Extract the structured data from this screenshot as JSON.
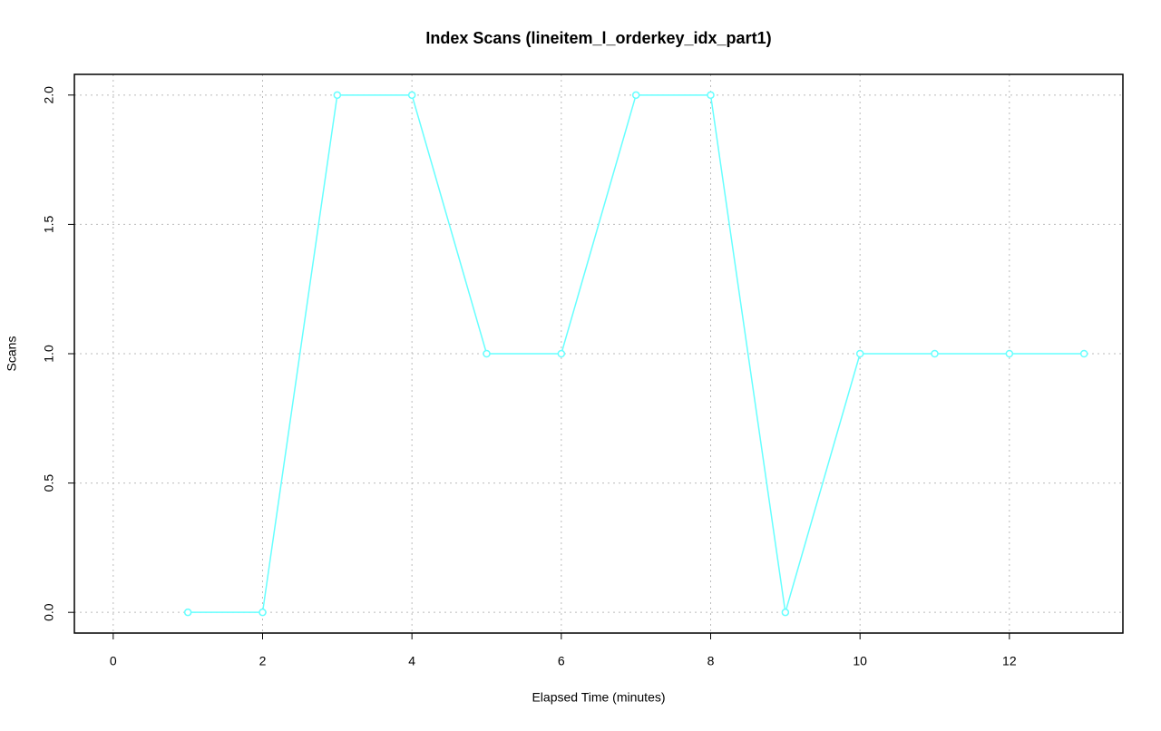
{
  "chart_data": {
    "type": "line",
    "title": "Index Scans (lineitem_l_orderkey_idx_part1)",
    "x_label": "Elapsed Time (minutes)",
    "y_label": "Scans",
    "x": [
      1,
      2,
      3,
      4,
      5,
      6,
      7,
      8,
      9,
      10,
      11,
      12,
      13
    ],
    "series": [
      {
        "name": "lineitem_l_orderkey_idx_part1",
        "color": "#66ffff",
        "values": [
          0,
          0,
          2,
          2,
          1,
          1,
          2,
          2,
          0,
          1,
          1,
          1,
          1
        ]
      }
    ],
    "xlim": [
      -0.52,
      13.52
    ],
    "xticks": [
      0,
      2,
      4,
      6,
      8,
      10,
      12
    ],
    "ylim": [
      -0.08,
      2.08
    ],
    "yticks": [
      {
        "value": 0,
        "label": "0.0"
      },
      {
        "value": 0.5,
        "label": "0.5"
      },
      {
        "value": 1,
        "label": "1.0"
      },
      {
        "value": 1.5,
        "label": "1.5"
      },
      {
        "value": 2,
        "label": "2.0"
      }
    ],
    "grid": true
  }
}
